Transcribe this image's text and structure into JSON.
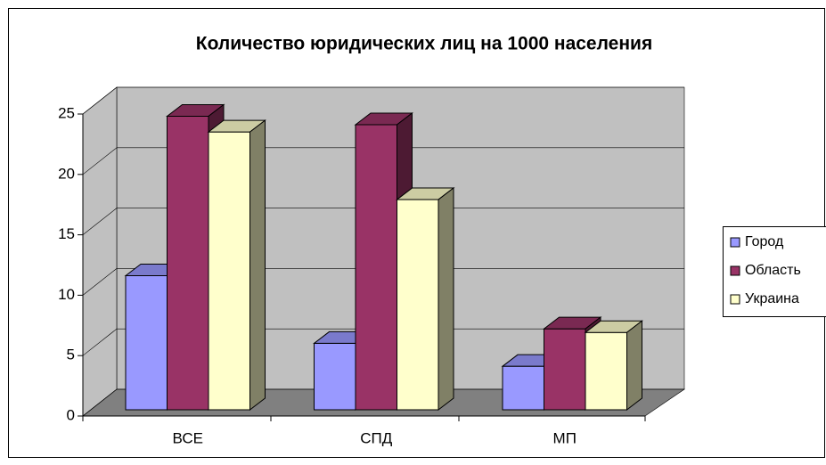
{
  "chart_data": {
    "type": "bar3d",
    "title": "Количество юридических лиц на 1000 населения",
    "categories": [
      "ВСЕ",
      "СПД",
      "МП"
    ],
    "series": [
      {
        "name": "Город",
        "color": "#9999ff",
        "values": [
          11.1,
          5.5,
          3.6
        ]
      },
      {
        "name": "Область",
        "color": "#993366",
        "values": [
          24.3,
          23.6,
          6.7
        ]
      },
      {
        "name": "Украина",
        "color": "#ffffcc",
        "values": [
          23.0,
          17.4,
          6.4
        ]
      }
    ],
    "ylim": [
      0,
      25
    ],
    "yticks": [
      0,
      5,
      10,
      15,
      20,
      25
    ],
    "grid": true,
    "legend": "right"
  }
}
